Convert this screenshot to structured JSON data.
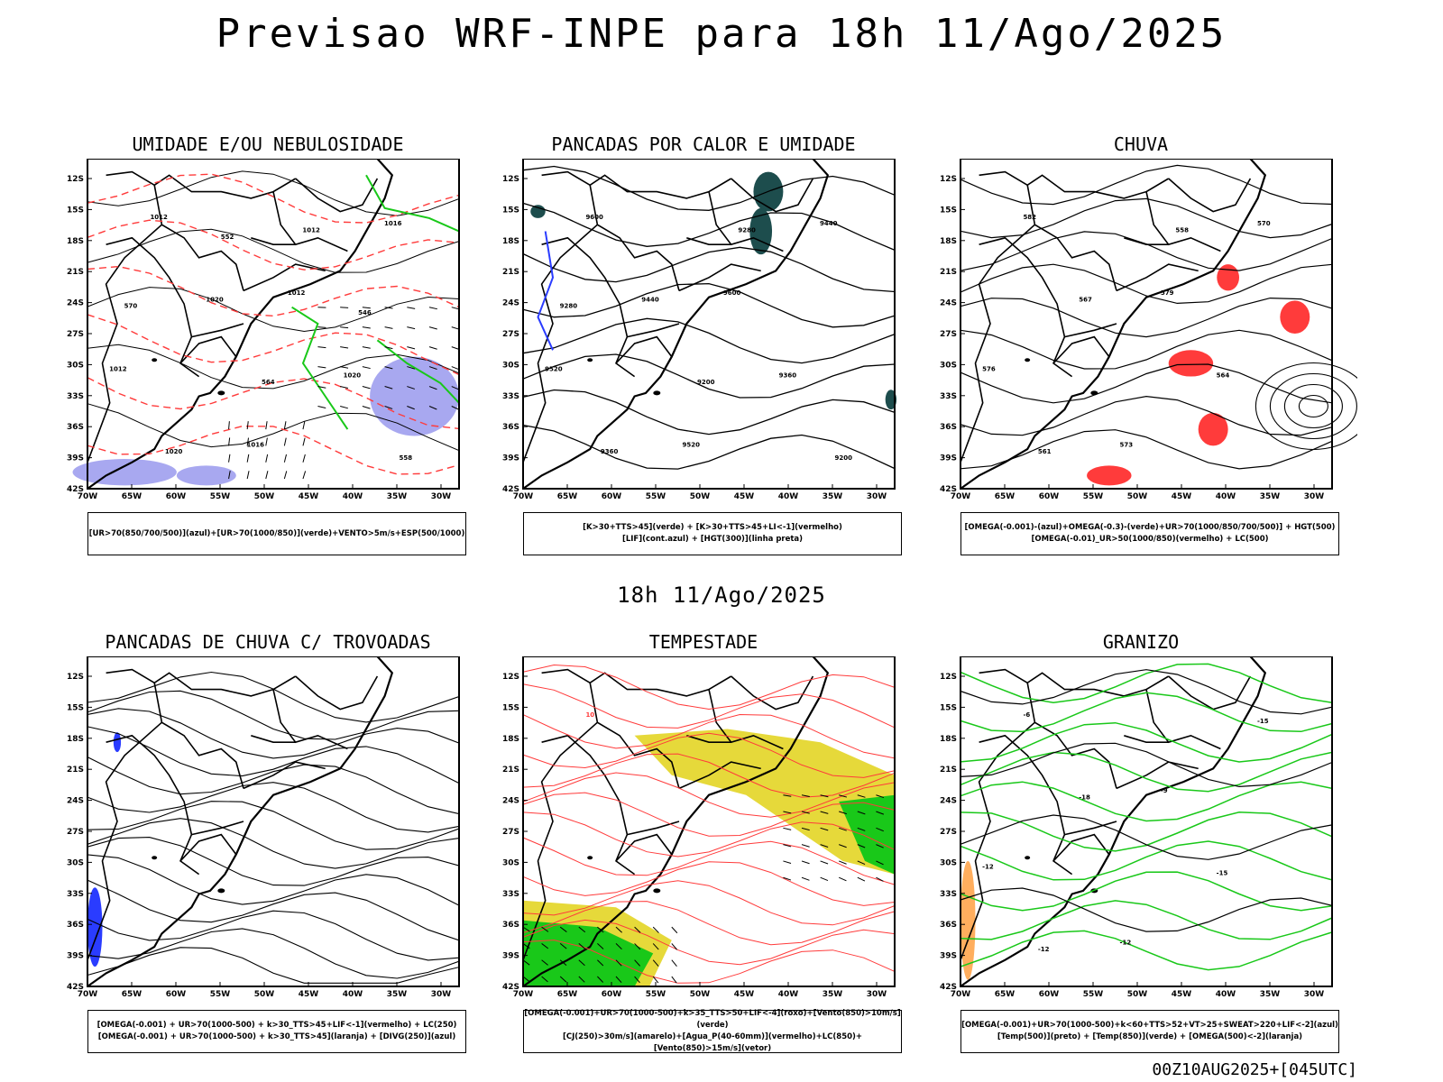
{
  "title": "Previsao WRF-INPE  para 18h 11/Ago/2025",
  "mid_title": "18h 11/Ago/2025",
  "footer": "00Z10AUG2025+[045UTC]",
  "axes": {
    "lat_ticks": [
      "12S",
      "15S",
      "18S",
      "21S",
      "24S",
      "27S",
      "30S",
      "33S",
      "36S",
      "39S",
      "42S"
    ],
    "lon_ticks": [
      "70W",
      "65W",
      "60W",
      "55W",
      "50W",
      "45W",
      "40W",
      "35W",
      "30W"
    ]
  },
  "colors": {
    "green": "#19c819",
    "red": "#ff3b3b",
    "blue": "#2a3cff",
    "yellow": "#e6d93a",
    "lavender": "#a8a8f0",
    "teal": "#1d4d4d",
    "orange": "#ff8c1a"
  },
  "panels": [
    {
      "id": "umidade",
      "title": "UMIDADE E/OU NEBULOSIDADE",
      "legend": [
        "[UR>70(850/700/500)](azul)+[UR>70(1000/850)](verde)+VENTO>5m/s+ESP(500/1000)"
      ],
      "labels": [
        "1012",
        "1012",
        "1012",
        "1016",
        "1016",
        "1020",
        "1020",
        "1020",
        "1012",
        "570",
        "564",
        "558",
        "552",
        "546"
      ]
    },
    {
      "id": "pancadas-calor",
      "title": "PANCADAS POR CALOR E UMIDADE",
      "legend": [
        "[K>30+TTS>45](verde) + [K>30+TTS>45+LI<-1](vermelho)",
        "[LIF](cont.azul) + [HGT(300)](linha preta)"
      ],
      "labels": [
        "9600",
        "9600",
        "9520",
        "9520",
        "9440",
        "9440",
        "9360",
        "9360",
        "9280",
        "9280",
        "9200",
        "9200"
      ]
    },
    {
      "id": "chuva",
      "title": "CHUVA",
      "legend": [
        "[OMEGA(-0.001)-(azul)+OMEGA(-0.3)-(verde)+UR>70(1000/850/700/500)] + HGT(500)",
        "[OMEGA(-0.01)_UR>50(1000/850)(vermelho) + LC(500)"
      ],
      "labels": [
        "582",
        "579",
        "576",
        "573",
        "570",
        "567",
        "564",
        "561",
        "558"
      ]
    },
    {
      "id": "trovoadas",
      "title": "PANCADAS DE CHUVA C/ TROVOADAS",
      "legend": [
        "[OMEGA(-0.001) + UR>70(1000-500) + k>30_TTS>45+LIF<-1](vermelho) + LC(250)",
        "[OMEGA(-0.001) + UR>70(1000-500) + k>30_TTS>45](laranja) + [DIVG(250)](azul)"
      ],
      "labels": []
    },
    {
      "id": "tempestade",
      "title": "TEMPESTADE",
      "legend": [
        "[OMEGA(-0.001)+UR>70(1000-500)+k>35_TTS>50+LIF<-4](roxo)+[Vento(850)>10m/s](verde)",
        "[CJ(250)>30m/s](amarelo)+[Agua_P(40-60mm)](vermelho)+LC(850)+[Vento(850)>15m/s](vetor)"
      ],
      "labels": [
        "10"
      ]
    },
    {
      "id": "granizo",
      "title": "GRANIZO",
      "legend": [
        "[OMEGA(-0.001)+UR>70(1000-500)+k<60+TTS>52+VT>25+SWEAT>220+LIF<-2](azul)",
        "[Temp(500)](preto) + [Temp(850)](verde) + [OMEGA(500)<-2](laranja)"
      ],
      "labels": [
        "-6",
        "-9",
        "-12",
        "-12",
        "-15",
        "-18",
        "-15",
        "-12"
      ]
    }
  ]
}
